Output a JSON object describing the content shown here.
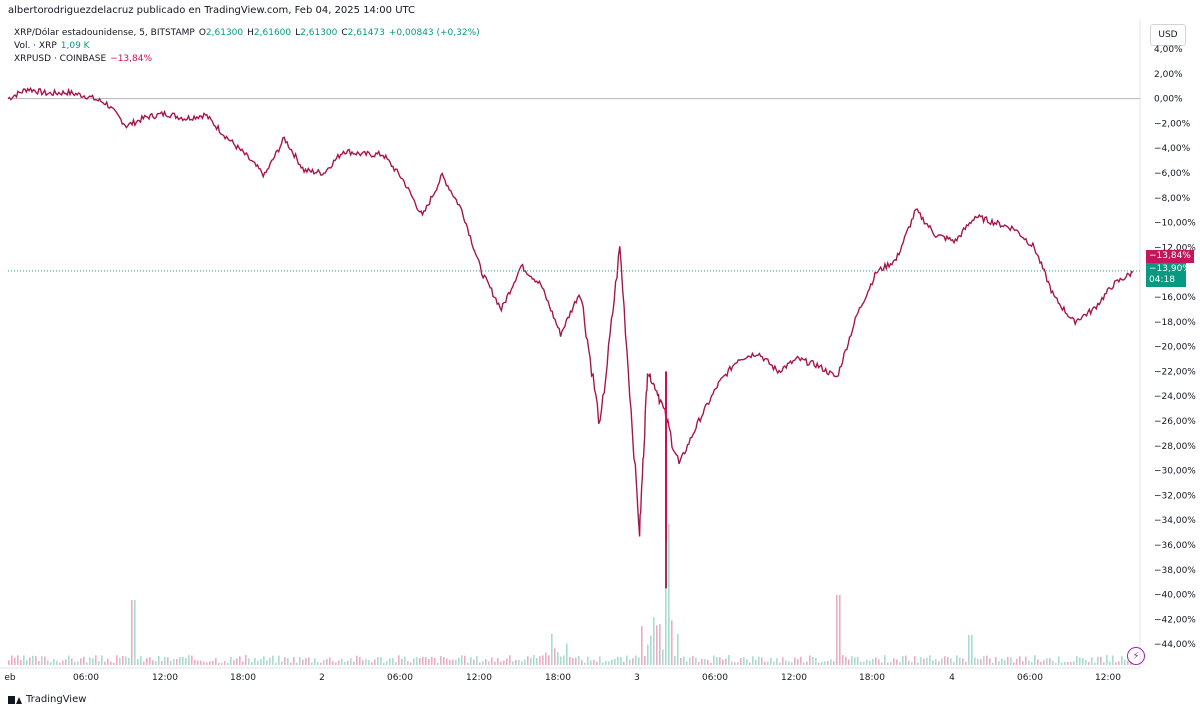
{
  "header": {
    "publish_line": "albertorodriguezdelacruz publicado en TradingView.com, Feb 04, 2025 14:00 UTC"
  },
  "legend": {
    "symbol": "XRP/Dólar estadounidense, 5, BITSTAMP",
    "ohlc": [
      {
        "key": "O",
        "value": "2,61300"
      },
      {
        "key": "H",
        "value": "2,61600"
      },
      {
        "key": "L",
        "value": "2,61300"
      },
      {
        "key": "C",
        "value": "2,61473"
      }
    ],
    "change": "+0,00843 (+0,32%)",
    "volume_label": "Vol. · XRP",
    "volume_value": "1,09 K",
    "compare_label": "XRPUSD · COINBASE",
    "compare_value": "−13,84%"
  },
  "axis": {
    "currency": "USD",
    "y_ticks": [
      "4,00%",
      "2,00%",
      "0,00%",
      "−2,00%",
      "−4,00%",
      "−6,00%",
      "−8,00%",
      "−10,00%",
      "−12,00%",
      "−16,00%",
      "−18,00%",
      "−20,00%",
      "−22,00%",
      "−24,00%",
      "−26,00%",
      "−28,00%",
      "−30,00%",
      "−32,00%",
      "−34,00%",
      "−36,00%",
      "−38,00%",
      "−40,00%",
      "−42,00%",
      "−44,00%"
    ],
    "x_ticks": [
      "eb",
      "06:00",
      "12:00",
      "18:00",
      "2",
      "06:00",
      "12:00",
      "18:00",
      "3",
      "06:00",
      "12:00",
      "18:00",
      "4",
      "06:00",
      "12:00"
    ]
  },
  "tags": {
    "compare": "−13,84%",
    "price": "−13,90%",
    "countdown": "04:18"
  },
  "colors": {
    "up": "#089981",
    "down": "#cc0f4f",
    "compare": "#c2185b",
    "zero_line": "#b2b5be",
    "grid_text": "#131722"
  },
  "footer": {
    "brand": "TradingView"
  },
  "chart_data": {
    "type": "line",
    "title": "XRP/Dólar estadounidense, 5, BITSTAMP",
    "ylabel": "%",
    "ylim": [
      -46,
      4
    ],
    "x_ticks": [
      "eb",
      "06:00",
      "12:00",
      "18:00",
      "2",
      "06:00",
      "12:00",
      "18:00",
      "3",
      "06:00",
      "12:00",
      "18:00",
      "4",
      "06:00",
      "12:00"
    ],
    "series": [
      {
        "name": "XRPUSD · COINBASE",
        "x": [
          0,
          0.25,
          0.5,
          0.75,
          1,
          1.25,
          1.5,
          1.75,
          2,
          2.25,
          2.5,
          2.75,
          3,
          3.25,
          3.5,
          3.75,
          4,
          4.25,
          4.5,
          4.75,
          5,
          5.25,
          5.5,
          5.75,
          6,
          6.25,
          6.5,
          6.75,
          7,
          7.25,
          7.5,
          7.75,
          8,
          8.1,
          8.25,
          8.5,
          8.75,
          9,
          9.25,
          9.5,
          9.75,
          10,
          10.25,
          10.5,
          10.75,
          11,
          11.25,
          11.5,
          11.75,
          12,
          12.25,
          12.5,
          12.75,
          13,
          13.25,
          13.5,
          13.75,
          14,
          14.25
        ],
        "values": [
          0,
          0.8,
          0.4,
          0.5,
          0.2,
          -0.4,
          -2.2,
          -1.5,
          -1.2,
          -1.6,
          -1.3,
          -3.0,
          -4.5,
          -6.2,
          -3.2,
          -5.8,
          -6.0,
          -4.2,
          -4.5,
          -4.5,
          -6.5,
          -9.5,
          -6.2,
          -9.0,
          -14.0,
          -17.0,
          -13.5,
          -15.0,
          -19.0,
          -15.5,
          -26.5,
          -12.0,
          -35.0,
          -22.0,
          -24.0,
          -29.5,
          -26.0,
          -23.0,
          -21.0,
          -20.5,
          -22.0,
          -21.0,
          -21.5,
          -22.5,
          -17.5,
          -14.0,
          -13.0,
          -9.0,
          -11.0,
          -11.5,
          -9.5,
          -10.0,
          -10.5,
          -12.0,
          -16.0,
          -18.0,
          -17.0,
          -15.0,
          -14.0
        ]
      }
    ],
    "volume": "bars at bottom, spike near day 3"
  }
}
